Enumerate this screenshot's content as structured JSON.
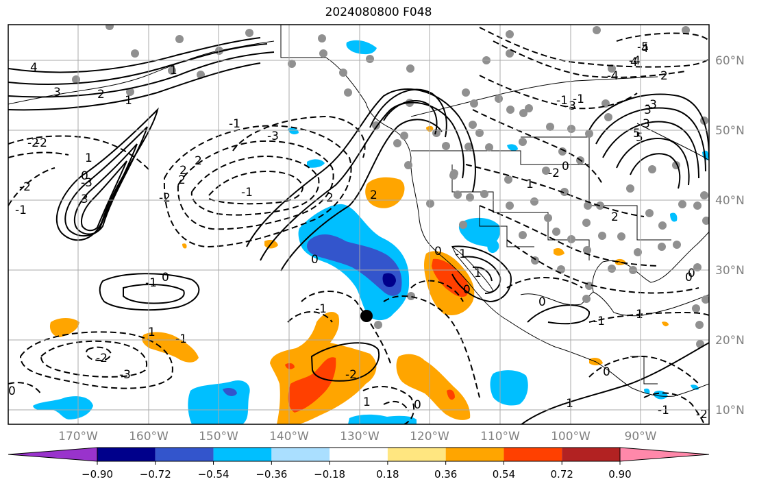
{
  "title": "2024080800 F048",
  "map": {
    "lon_labels": [
      "170°W",
      "160°W",
      "150°W",
      "140°W",
      "130°W",
      "120°W",
      "110°W",
      "100°W",
      "90°W"
    ],
    "lat_labels": [
      "60°N",
      "50°N",
      "40°N",
      "30°N",
      "20°N",
      "10°N"
    ]
  },
  "contour_labels": [
    "4",
    "3",
    "2",
    "1",
    "-1",
    "-2",
    "-3",
    "1",
    "-2",
    "-1",
    "-2",
    "2",
    "-3",
    "-1",
    "2",
    "-1",
    "0",
    "-1",
    "2",
    "0",
    "1",
    "-1",
    "-2",
    "-3",
    "3",
    "3",
    "4",
    "5",
    "2",
    "-5",
    "-4",
    "-3",
    "-2",
    "1",
    "2",
    "-1",
    "0",
    "0",
    "1",
    "-1",
    "0",
    "0",
    "-1",
    "-2",
    "-1",
    "-2",
    "1",
    "0",
    "-1",
    "0",
    "-1",
    "0",
    "1",
    "0",
    "-3",
    "-4",
    "2",
    "2",
    "-1",
    "-2",
    "3",
    "5",
    "4",
    "0",
    "0"
  ],
  "colorbar": {
    "ticks": [
      "−0.90",
      "−0.72",
      "−0.54",
      "−0.36",
      "−0.18",
      "0.18",
      "0.36",
      "0.54",
      "0.72",
      "0.90"
    ],
    "colors": [
      "#9933cc",
      "#00008b",
      "#3355cc",
      "#00bfff",
      "#aadfff",
      "#ffffff",
      "#ffe680",
      "#ffa500",
      "#ff4000",
      "#b22222",
      "#ff88aa"
    ]
  },
  "palette": {
    "light_blue": "#00bfff",
    "mid_blue": "#3355cc",
    "dark_navy": "#00008b",
    "orange": "#ffa500",
    "red_orange": "#ff4000",
    "station_gray": "#909090"
  }
}
